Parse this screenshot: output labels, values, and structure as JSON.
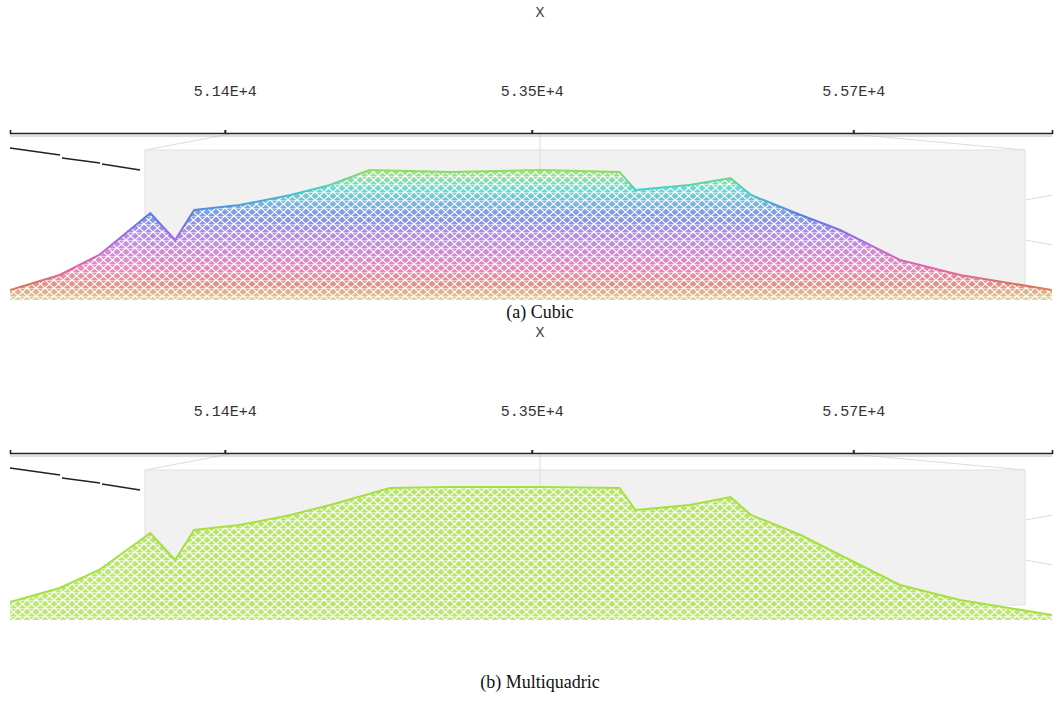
{
  "chart_data": [
    {
      "type": "area",
      "title": "(a) Cubic",
      "x_label": "X",
      "x": [
        49930,
        50270,
        50540,
        50890,
        51060,
        51190,
        51500,
        51850,
        52120,
        52390,
        52940,
        53560,
        54100,
        54210,
        54580,
        54860,
        55000,
        55340,
        55610,
        56020,
        56430,
        57060
      ],
      "values": [
        10,
        25,
        45,
        87,
        60,
        90,
        95,
        105,
        115,
        130,
        128,
        130,
        128,
        110,
        115,
        122,
        105,
        85,
        70,
        40,
        25,
        10
      ],
      "xlim": [
        49930,
        57060
      ],
      "xticks": [
        {
          "value": 51400,
          "label": "5.14E+4"
        },
        {
          "value": 53500,
          "label": "5.35E+4"
        },
        {
          "value": 55700,
          "label": "5.57E+4"
        }
      ],
      "ylim": [
        0,
        170
      ],
      "tick_labels": "x"
    },
    {
      "type": "area",
      "title": "(b) Multiquadric",
      "x_label": "X",
      "x": [
        49930,
        50270,
        50540,
        50890,
        51060,
        51190,
        51500,
        51850,
        52120,
        52530,
        52940,
        53560,
        54100,
        54210,
        54580,
        54860,
        55000,
        55340,
        55610,
        56020,
        56430,
        57060
      ],
      "values": [
        18,
        32,
        50,
        87,
        60,
        90,
        95,
        105,
        115,
        132,
        133,
        133,
        132,
        110,
        115,
        123,
        105,
        85,
        65,
        35,
        20,
        5
      ],
      "xlim": [
        49930,
        57060
      ],
      "xticks": [
        {
          "value": 51400,
          "label": "5.14E+4"
        },
        {
          "value": 53500,
          "label": "5.35E+4"
        },
        {
          "value": 55700,
          "label": "5.57E+4"
        }
      ],
      "ylim": [
        0,
        170
      ],
      "tick_labels": "x"
    }
  ]
}
